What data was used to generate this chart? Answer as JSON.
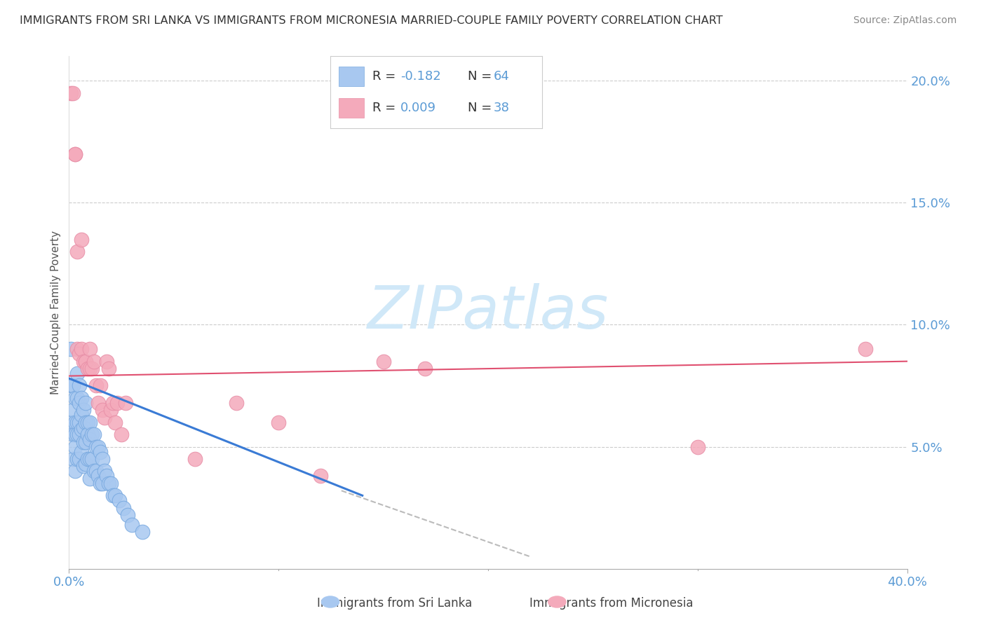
{
  "title": "IMMIGRANTS FROM SRI LANKA VS IMMIGRANTS FROM MICRONESIA MARRIED-COUPLE FAMILY POVERTY CORRELATION CHART",
  "source": "Source: ZipAtlas.com",
  "ylabel": "Married-Couple Family Poverty",
  "xlim": [
    0.0,
    0.4
  ],
  "ylim": [
    0.0,
    0.21
  ],
  "yticks": [
    0.0,
    0.05,
    0.1,
    0.15,
    0.2
  ],
  "yticklabels": [
    "",
    "5.0%",
    "10.0%",
    "15.0%",
    "20.0%"
  ],
  "sri_lanka_color": "#A8C8F0",
  "micronesia_color": "#F4AABB",
  "sri_lanka_edge": "#7AAAE0",
  "micronesia_edge": "#E890A8",
  "trend_sri_color": "#3A7BD5",
  "trend_mic_color": "#E05070",
  "trend_dashed_color": "#BBBBBB",
  "tick_color": "#5B9BD5",
  "grid_color": "#CCCCCC",
  "bg_color": "#FFFFFF",
  "title_color": "#333333",
  "axis_label_color": "#555555",
  "legend_text_dark": "#333333",
  "legend_text_blue": "#5B9BD5",
  "watermark_color": "#D0E8F8",
  "sri_lanka_label": "R = -0.182",
  "sri_lanka_N": "N = 64",
  "micronesia_label": "R = 0.009",
  "micronesia_N": "N = 38",
  "legend_sri_color": "#A8C8F0",
  "legend_mic_color": "#F4AABB",
  "sri_lanka_x": [
    0.001,
    0.001,
    0.001,
    0.002,
    0.002,
    0.002,
    0.002,
    0.003,
    0.003,
    0.003,
    0.003,
    0.003,
    0.004,
    0.004,
    0.004,
    0.004,
    0.004,
    0.005,
    0.005,
    0.005,
    0.005,
    0.005,
    0.006,
    0.006,
    0.006,
    0.006,
    0.007,
    0.007,
    0.007,
    0.007,
    0.008,
    0.008,
    0.008,
    0.008,
    0.009,
    0.009,
    0.009,
    0.01,
    0.01,
    0.01,
    0.01,
    0.011,
    0.011,
    0.012,
    0.012,
    0.013,
    0.013,
    0.014,
    0.014,
    0.015,
    0.015,
    0.016,
    0.016,
    0.017,
    0.018,
    0.019,
    0.02,
    0.021,
    0.022,
    0.024,
    0.026,
    0.028,
    0.03,
    0.035
  ],
  "sri_lanka_y": [
    0.09,
    0.075,
    0.06,
    0.075,
    0.065,
    0.055,
    0.045,
    0.07,
    0.06,
    0.055,
    0.05,
    0.04,
    0.08,
    0.07,
    0.06,
    0.055,
    0.045,
    0.075,
    0.068,
    0.06,
    0.055,
    0.045,
    0.07,
    0.063,
    0.057,
    0.048,
    0.065,
    0.058,
    0.052,
    0.042,
    0.068,
    0.06,
    0.052,
    0.043,
    0.06,
    0.055,
    0.045,
    0.06,
    0.053,
    0.045,
    0.037,
    0.055,
    0.045,
    0.055,
    0.04,
    0.05,
    0.04,
    0.05,
    0.038,
    0.048,
    0.035,
    0.045,
    0.035,
    0.04,
    0.038,
    0.035,
    0.035,
    0.03,
    0.03,
    0.028,
    0.025,
    0.022,
    0.018,
    0.015
  ],
  "micronesia_x": [
    0.001,
    0.002,
    0.003,
    0.003,
    0.004,
    0.004,
    0.005,
    0.006,
    0.006,
    0.007,
    0.008,
    0.008,
    0.009,
    0.01,
    0.01,
    0.011,
    0.012,
    0.013,
    0.014,
    0.015,
    0.016,
    0.017,
    0.018,
    0.019,
    0.02,
    0.021,
    0.022,
    0.023,
    0.025,
    0.027,
    0.06,
    0.08,
    0.1,
    0.12,
    0.15,
    0.17,
    0.3,
    0.38
  ],
  "micronesia_y": [
    0.195,
    0.195,
    0.17,
    0.17,
    0.13,
    0.09,
    0.088,
    0.09,
    0.135,
    0.085,
    0.085,
    0.085,
    0.082,
    0.082,
    0.09,
    0.082,
    0.085,
    0.075,
    0.068,
    0.075,
    0.065,
    0.062,
    0.085,
    0.082,
    0.065,
    0.068,
    0.06,
    0.068,
    0.055,
    0.068,
    0.045,
    0.068,
    0.06,
    0.038,
    0.085,
    0.082,
    0.05,
    0.09
  ]
}
